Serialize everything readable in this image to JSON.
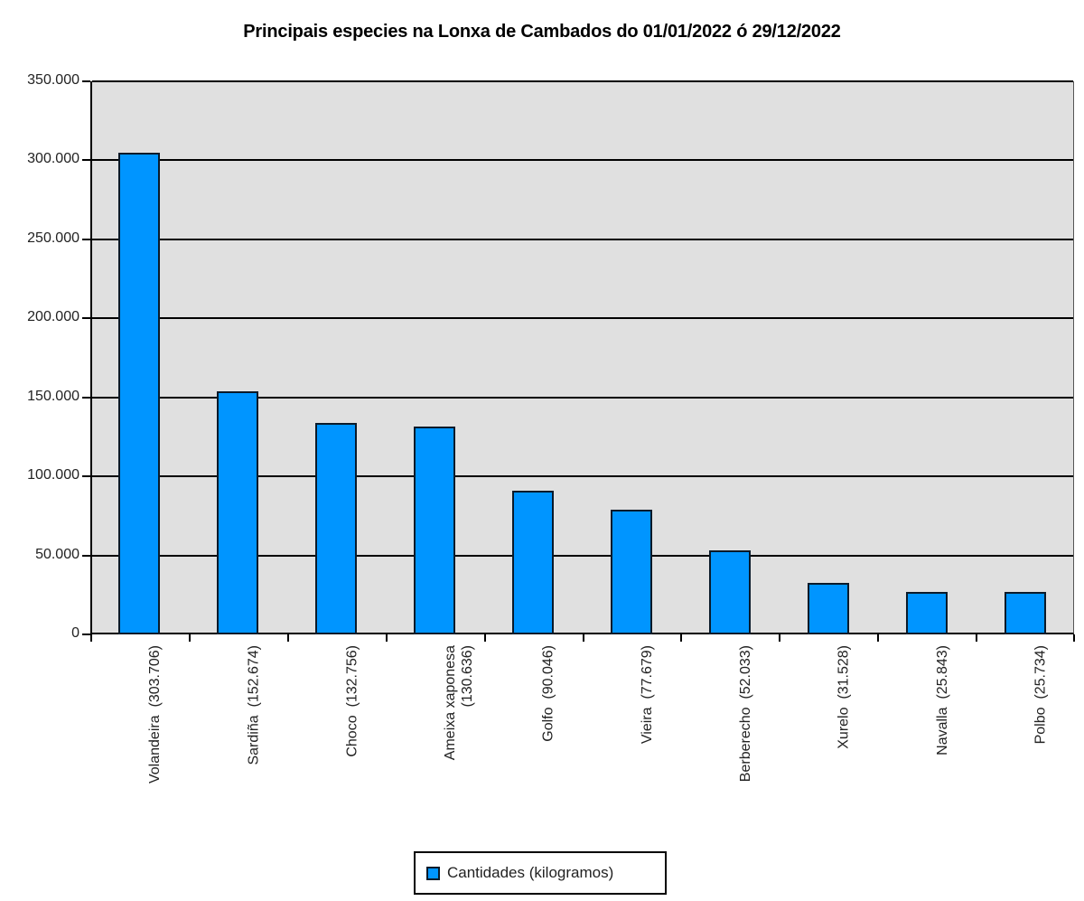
{
  "chart_data": {
    "type": "bar",
    "title": "Principais especies na Lonxa de Cambados do 01/01/2022 ó 29/12/2022",
    "xlabel": "",
    "ylabel": "",
    "ylim": [
      0,
      350000
    ],
    "yticks": [
      "0",
      "50.000",
      "100.000",
      "150.000",
      "200.000",
      "250.000",
      "300.000",
      "350.000"
    ],
    "grid": true,
    "legend_position": "bottom",
    "categories": [
      "Volandeira",
      "Sardiña",
      "Choco",
      "Ameixa xaponesa",
      "Golfo",
      "Vieira",
      "Berberecho",
      "Xurelo",
      "Navalla",
      "Polbo"
    ],
    "tick_labels": [
      "Volandeira  (303.706)",
      "Sardiña  (152.674)",
      "Choco  (132.756)",
      "Ameixa xaponesa\n(130.636)",
      "Golfo  (90.046)",
      "Vieira  (77.679)",
      "Berberecho  (52.033)",
      "Xurelo  (31.528)",
      "Navalla  (25.843)",
      "Polbo  (25.734)"
    ],
    "series": [
      {
        "name": "Cantidades (kilogramos)",
        "color": "#0095ff",
        "values": [
          303706,
          152674,
          132756,
          130636,
          90046,
          77679,
          52033,
          31528,
          25843,
          25734
        ]
      }
    ]
  },
  "legend": {
    "label": "Cantidades (kilogramos)"
  }
}
